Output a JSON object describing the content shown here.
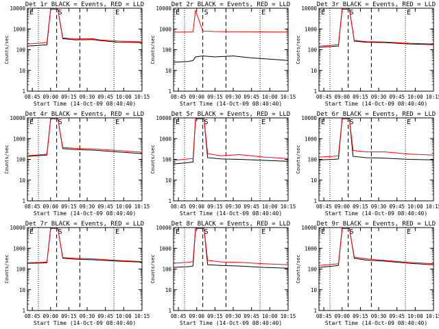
{
  "figure": {
    "xlabel": "Start Time (14-Oct-09 08:40:40)",
    "ylabel": "Counts/sec",
    "x_ticks": [
      "08:45",
      "09:00",
      "09:15",
      "09:30",
      "09:45",
      "10:00",
      "10:15"
    ],
    "y_ticks": [
      "1",
      "10",
      "100",
      "1000",
      "10000"
    ],
    "series_colors": {
      "events": "#000000",
      "lld": "#ff0000"
    },
    "marker_labels": [
      "E",
      "S",
      "E"
    ]
  },
  "chart_data": [
    {
      "type": "line",
      "title": "Det 1r BLACK = Events, RED = LLD",
      "xlabel": "Start Time (14-Oct-09 08:40:40)",
      "ylabel": "Counts/sec",
      "xlim_min": [
        -4,
        90
      ],
      "ylim": [
        1,
        10000
      ],
      "yscale": "log",
      "markers_min": [
        5,
        20,
        39,
        67
      ],
      "events": [
        [
          -4,
          150
        ],
        [
          8,
          165
        ],
        [
          12,
          170
        ],
        [
          15,
          9000
        ],
        [
          21,
          9000
        ],
        [
          25,
          340
        ],
        [
          35,
          300
        ],
        [
          50,
          305
        ],
        [
          55,
          280
        ],
        [
          70,
          230
        ],
        [
          90,
          220
        ]
      ],
      "lld": [
        [
          -4,
          190
        ],
        [
          8,
          210
        ],
        [
          12,
          220
        ],
        [
          15,
          9000
        ],
        [
          21,
          9000
        ],
        [
          25,
          370
        ],
        [
          35,
          330
        ],
        [
          50,
          340
        ],
        [
          55,
          300
        ],
        [
          70,
          260
        ],
        [
          90,
          240
        ]
      ]
    },
    {
      "type": "line",
      "title": "Det 2r BLACK = Events, RED = LLD",
      "xlabel": "Start Time (14-Oct-09 08:40:40)",
      "ylabel": "Counts/sec",
      "xlim_min": [
        -4,
        90
      ],
      "ylim": [
        1,
        10000
      ],
      "yscale": "log",
      "markers_min": [
        5,
        20,
        39,
        67
      ],
      "events": [
        [
          -4,
          25
        ],
        [
          8,
          27
        ],
        [
          12,
          30
        ],
        [
          14,
          45
        ],
        [
          20,
          50
        ],
        [
          30,
          45
        ],
        [
          45,
          50
        ],
        [
          60,
          40
        ],
        [
          75,
          35
        ],
        [
          90,
          30
        ]
      ],
      "lld": [
        [
          -4,
          700
        ],
        [
          8,
          710
        ],
        [
          12,
          720
        ],
        [
          14,
          8000
        ],
        [
          20,
          800
        ],
        [
          30,
          750
        ],
        [
          45,
          740
        ],
        [
          60,
          730
        ],
        [
          75,
          720
        ],
        [
          90,
          710
        ]
      ]
    },
    {
      "type": "line",
      "title": "Det 3r BLACK = Events, RED = LLD",
      "xlabel": "Start Time (14-Oct-09 08:40:40)",
      "ylabel": "Counts/sec",
      "xlim_min": [
        -4,
        90
      ],
      "ylim": [
        1,
        10000
      ],
      "yscale": "log",
      "markers_min": [
        5,
        20,
        39,
        67
      ],
      "events": [
        [
          -4,
          130
        ],
        [
          8,
          145
        ],
        [
          12,
          150
        ],
        [
          15,
          9000
        ],
        [
          21,
          9000
        ],
        [
          25,
          260
        ],
        [
          35,
          230
        ],
        [
          50,
          220
        ],
        [
          70,
          190
        ],
        [
          90,
          175
        ]
      ],
      "lld": [
        [
          -4,
          150
        ],
        [
          8,
          165
        ],
        [
          12,
          175
        ],
        [
          15,
          9000
        ],
        [
          21,
          9000
        ],
        [
          25,
          280
        ],
        [
          35,
          245
        ],
        [
          50,
          235
        ],
        [
          70,
          205
        ],
        [
          90,
          190
        ]
      ]
    },
    {
      "type": "line",
      "title": "Det 4r BLACK = Events, RED = LLD",
      "xlabel": "Start Time (14-Oct-09 08:40:40)",
      "ylabel": "Counts/sec",
      "xlim_min": [
        -4,
        90
      ],
      "ylim": [
        1,
        10000
      ],
      "yscale": "log",
      "markers_min": [
        5,
        20,
        39,
        67
      ],
      "events": [
        [
          -4,
          140
        ],
        [
          8,
          155
        ],
        [
          12,
          160
        ],
        [
          15,
          9000
        ],
        [
          21,
          9000
        ],
        [
          25,
          330
        ],
        [
          35,
          300
        ],
        [
          50,
          280
        ],
        [
          70,
          230
        ],
        [
          90,
          190
        ]
      ],
      "lld": [
        [
          -4,
          150
        ],
        [
          8,
          170
        ],
        [
          12,
          180
        ],
        [
          15,
          9000
        ],
        [
          21,
          9000
        ],
        [
          25,
          380
        ],
        [
          35,
          340
        ],
        [
          50,
          320
        ],
        [
          70,
          270
        ],
        [
          90,
          220
        ]
      ]
    },
    {
      "type": "line",
      "title": "Det 5r BLACK = Events, RED = LLD",
      "xlabel": "Start Time (14-Oct-09 08:40:40)",
      "ylabel": "Counts/sec",
      "xlim_min": [
        -4,
        90
      ],
      "ylim": [
        1,
        10000
      ],
      "yscale": "log",
      "markers_min": [
        5,
        20,
        39,
        67
      ],
      "events": [
        [
          -4,
          60
        ],
        [
          8,
          70
        ],
        [
          12,
          75
        ],
        [
          14,
          9000
        ],
        [
          21,
          9000
        ],
        [
          24,
          120
        ],
        [
          35,
          105
        ],
        [
          50,
          100
        ],
        [
          70,
          90
        ],
        [
          90,
          80
        ]
      ],
      "lld": [
        [
          -4,
          90
        ],
        [
          8,
          105
        ],
        [
          12,
          110
        ],
        [
          14,
          9000
        ],
        [
          21,
          9000
        ],
        [
          24,
          190
        ],
        [
          35,
          150
        ],
        [
          50,
          170
        ],
        [
          70,
          130
        ],
        [
          90,
          110
        ]
      ]
    },
    {
      "type": "line",
      "title": "Det 6r BLACK = Events, RED = LLD",
      "xlabel": "Start Time (14-Oct-09 08:40:40)",
      "ylabel": "Counts/sec",
      "xlim_min": [
        -4,
        90
      ],
      "ylim": [
        1,
        10000
      ],
      "yscale": "log",
      "markers_min": [
        5,
        20,
        39,
        67
      ],
      "events": [
        [
          -4,
          95
        ],
        [
          8,
          100
        ],
        [
          12,
          105
        ],
        [
          15,
          9000
        ],
        [
          21,
          9000
        ],
        [
          24,
          140
        ],
        [
          35,
          120
        ],
        [
          50,
          115
        ],
        [
          70,
          100
        ],
        [
          90,
          95
        ]
      ],
      "lld": [
        [
          -4,
          130
        ],
        [
          8,
          140
        ],
        [
          12,
          150
        ],
        [
          15,
          9000
        ],
        [
          21,
          9000
        ],
        [
          24,
          270
        ],
        [
          35,
          230
        ],
        [
          50,
          230
        ],
        [
          70,
          180
        ],
        [
          90,
          160
        ]
      ]
    },
    {
      "type": "line",
      "title": "Det 7r BLACK = Events, RED = LLD",
      "xlabel": "Start Time (14-Oct-09 08:40:40)",
      "ylabel": "Counts/sec",
      "xlim_min": [
        -4,
        90
      ],
      "ylim": [
        1,
        10000
      ],
      "yscale": "log",
      "markers_min": [
        5,
        20,
        39,
        67
      ],
      "events": [
        [
          -4,
          190
        ],
        [
          8,
          195
        ],
        [
          12,
          200
        ],
        [
          15,
          9000
        ],
        [
          21,
          9000
        ],
        [
          25,
          330
        ],
        [
          35,
          300
        ],
        [
          50,
          280
        ],
        [
          70,
          240
        ],
        [
          90,
          215
        ]
      ],
      "lld": [
        [
          -4,
          200
        ],
        [
          8,
          210
        ],
        [
          12,
          215
        ],
        [
          15,
          9000
        ],
        [
          21,
          9000
        ],
        [
          25,
          360
        ],
        [
          35,
          330
        ],
        [
          50,
          310
        ],
        [
          70,
          260
        ],
        [
          90,
          230
        ]
      ]
    },
    {
      "type": "line",
      "title": "Det 8r BLACK = Events, RED = LLD",
      "xlabel": "Start Time (14-Oct-09 08:40:40)",
      "ylabel": "Counts/sec",
      "xlim_min": [
        -4,
        90
      ],
      "ylim": [
        1,
        10000
      ],
      "yscale": "log",
      "markers_min": [
        5,
        20,
        39,
        67
      ],
      "events": [
        [
          -4,
          120
        ],
        [
          8,
          130
        ],
        [
          12,
          140
        ],
        [
          14,
          9000
        ],
        [
          21,
          9000
        ],
        [
          24,
          160
        ],
        [
          35,
          150
        ],
        [
          50,
          140
        ],
        [
          70,
          120
        ],
        [
          90,
          110
        ]
      ],
      "lld": [
        [
          -4,
          190
        ],
        [
          8,
          210
        ],
        [
          12,
          230
        ],
        [
          14,
          9000
        ],
        [
          21,
          9000
        ],
        [
          24,
          260
        ],
        [
          35,
          220
        ],
        [
          50,
          210
        ],
        [
          70,
          180
        ],
        [
          90,
          160
        ]
      ]
    },
    {
      "type": "line",
      "title": "Det 9r BLACK = Events, RED = LLD",
      "xlabel": "Start Time (14-Oct-09 08:40:40)",
      "ylabel": "Counts/sec",
      "xlim_min": [
        -4,
        90
      ],
      "ylim": [
        1,
        10000
      ],
      "yscale": "log",
      "markers_min": [
        5,
        20,
        39,
        67
      ],
      "events": [
        [
          -4,
          120
        ],
        [
          8,
          140
        ],
        [
          12,
          150
        ],
        [
          15,
          9000
        ],
        [
          21,
          9000
        ],
        [
          25,
          330
        ],
        [
          35,
          270
        ],
        [
          50,
          240
        ],
        [
          70,
          190
        ],
        [
          90,
          160
        ]
      ],
      "lld": [
        [
          -4,
          150
        ],
        [
          8,
          170
        ],
        [
          12,
          180
        ],
        [
          15,
          9000
        ],
        [
          21,
          9000
        ],
        [
          25,
          380
        ],
        [
          35,
          310
        ],
        [
          50,
          260
        ],
        [
          70,
          210
        ],
        [
          90,
          180
        ]
      ]
    }
  ]
}
